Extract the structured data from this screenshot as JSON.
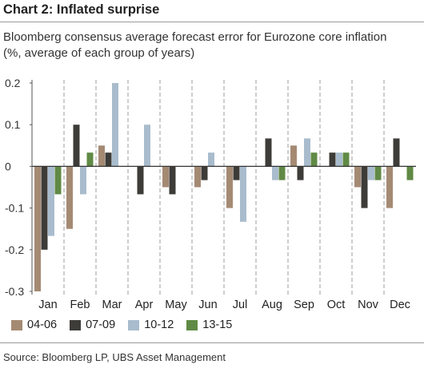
{
  "chart_data": {
    "type": "bar",
    "title": "Chart 2: Inflated surprise",
    "subtitle_lines": [
      "Bloomberg consensus average forecast error for Eurozone core inflation",
      "(%, average of each group of years)"
    ],
    "categories": [
      "Jan",
      "Feb",
      "Mar",
      "Apr",
      "May",
      "Jun",
      "Jul",
      "Aug",
      "Sep",
      "Oct",
      "Nov",
      "Dec"
    ],
    "series": [
      {
        "name": "04-06",
        "color": "#a58a73",
        "values": [
          -0.3,
          -0.15,
          0.05,
          0.0,
          -0.05,
          -0.05,
          -0.1,
          0.0,
          0.05,
          0.0,
          -0.05,
          -0.1
        ]
      },
      {
        "name": "07-09",
        "color": "#3d3c38",
        "values": [
          -0.2,
          0.1,
          0.033,
          -0.067,
          -0.067,
          -0.033,
          -0.033,
          0.067,
          -0.033,
          0.033,
          -0.1,
          0.067
        ]
      },
      {
        "name": "10-12",
        "color": "#a9bccd",
        "values": [
          -0.167,
          -0.067,
          0.2,
          0.1,
          0.0,
          0.033,
          -0.133,
          -0.033,
          0.067,
          0.033,
          -0.033,
          0.0
        ]
      },
      {
        "name": "13-15",
        "color": "#5f8a45",
        "values": [
          -0.067,
          0.033,
          0.0,
          0.0,
          0.0,
          0.0,
          0.0,
          -0.033,
          0.033,
          0.033,
          -0.033,
          -0.033
        ]
      }
    ],
    "ylim": [
      -0.3,
      0.2
    ],
    "yticks": [
      0.2,
      0.1,
      0,
      -0.1,
      -0.2,
      -0.3
    ],
    "ytick_labels": [
      "0.2",
      "0.1",
      "0",
      "-0.1",
      "-0.2",
      "-0.3"
    ],
    "grid": "vertical dashed between categories",
    "legend_position": "bottom",
    "source": "Source: Bloomberg LP, UBS Asset Management"
  }
}
